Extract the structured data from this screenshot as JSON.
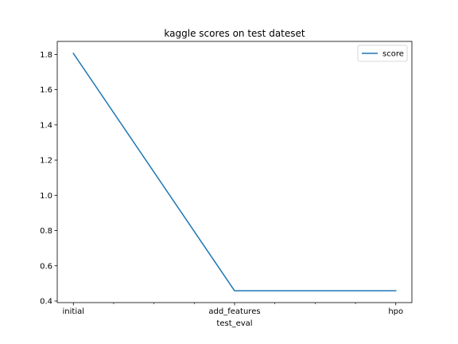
{
  "chart_data": {
    "type": "line",
    "title": "kaggle scores on test dateset",
    "xlabel": "test_eval",
    "ylabel": "",
    "categories": [
      "initial",
      "add_features",
      "hpo"
    ],
    "series": [
      {
        "name": "score",
        "values": [
          1.806,
          0.458,
          0.458
        ],
        "color": "#1f77b4"
      }
    ],
    "yticks": [
      0.4,
      0.6,
      0.8,
      1.0,
      1.2,
      1.4,
      1.6,
      1.8
    ],
    "ylim": [
      0.391,
      1.874
    ],
    "xlim": [
      -0.1,
      2.1
    ],
    "minor_xticks": [
      0.25,
      0.5,
      0.75,
      1.25,
      1.5,
      1.75
    ],
    "legend": "top-right",
    "grid": false
  }
}
